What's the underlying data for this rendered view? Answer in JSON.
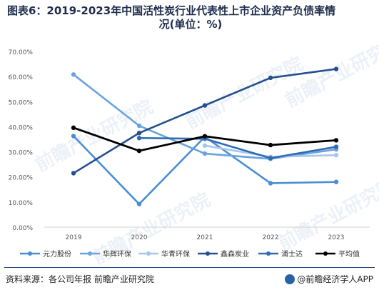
{
  "title_line1": "图表6：2019-2023年中国活性炭行业代表性上市企业资产负债率情",
  "title_line2": "况(单位：%)",
  "source_text": "资料来源：各公司年报 前瞻产业研究院",
  "brand_text": "@前瞻经济学人APP",
  "watermark_text": "前瞻产业研究院",
  "chart_data": {
    "type": "line",
    "title": "图表6：2019-2023年中国活性炭行业代表性上市企业资产负债率情况(单位：%)",
    "x": [
      "2019",
      "2020",
      "2021",
      "2022",
      "2023"
    ],
    "y_ticks": [
      "0.00%",
      "10.00%",
      "20.00%",
      "30.00%",
      "40.00%",
      "50.00%",
      "60.00%",
      "70.00%"
    ],
    "ylim": [
      0,
      70
    ],
    "grid": false,
    "legend_position": "bottom",
    "series": [
      {
        "name": "元力股份",
        "color": "#4a8fd4",
        "values": [
          36.3,
          9.2,
          36.0,
          17.5,
          18.0
        ]
      },
      {
        "name": "华辉环保",
        "color": "#6aa3de",
        "values": [
          60.8,
          40.4,
          29.3,
          27.2,
          31.0
        ]
      },
      {
        "name": "华青环保",
        "color": "#a6c7ec",
        "values": [
          null,
          null,
          32.5,
          28.0,
          28.7
        ]
      },
      {
        "name": "鑫森炭业",
        "color": "#23508f",
        "values": [
          21.5,
          37.5,
          48.5,
          59.5,
          63.0
        ]
      },
      {
        "name": "浦士达",
        "color": "#2f6cb0",
        "values": [
          null,
          35.5,
          35.2,
          27.5,
          32.0
        ]
      },
      {
        "name": "平均值",
        "color": "#000000",
        "values": [
          39.6,
          30.4,
          36.2,
          32.7,
          34.6
        ]
      }
    ]
  }
}
